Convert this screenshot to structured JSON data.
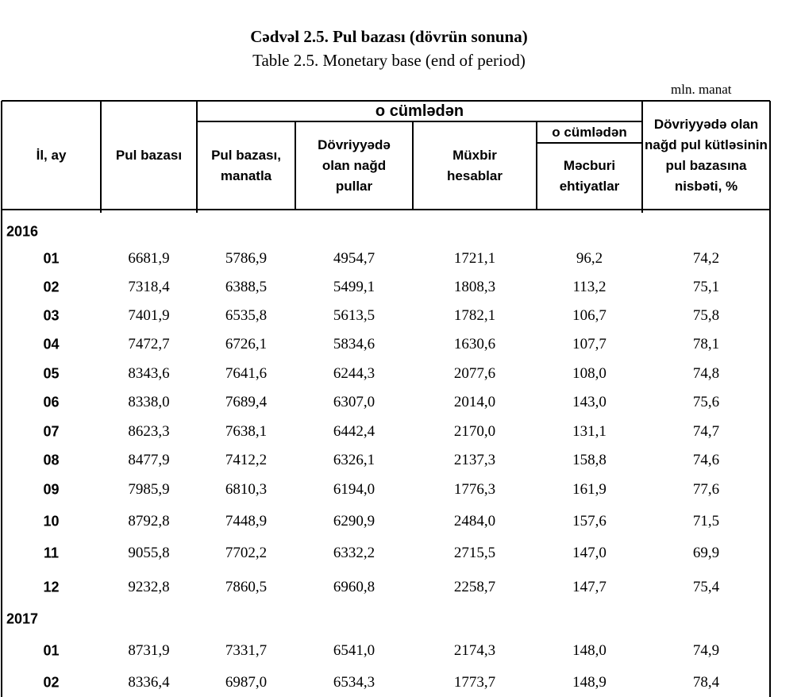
{
  "header": {
    "title": "Cədvəl 2.5.  Pul  bazası (dövrün sonuna)",
    "subtitle": "Table  2.5.  Monetary base (end of period)",
    "unit": "mln. manat"
  },
  "table": {
    "columns": [
      "İl, ay",
      "Pul bazası",
      "o cümlədən",
      "Pul  bazası, manatla",
      "Dövriyyədə olan nağd pullar",
      "Müxbir hesablar",
      "o cümlədən",
      "Məcburi ehtiyatlar",
      "Dövriyyədə olan nağd pul kütləsinin pul bazasına nisbəti, %"
    ],
    "rows": [
      [
        "2016"
      ],
      [
        "01",
        "6681,9",
        "5786,9",
        "4954,7",
        "1721,1",
        "96,2",
        "74,2"
      ],
      [
        "02",
        "7318,4",
        "6388,5",
        "5499,1",
        "1808,3",
        "113,2",
        "75,1"
      ],
      [
        "03",
        "7401,9",
        "6535,8",
        "5613,5",
        "1782,1",
        "106,7",
        "75,8"
      ],
      [
        "04",
        "7472,7",
        "6726,1",
        "5834,6",
        "1630,6",
        "107,7",
        "78,1"
      ],
      [
        "05",
        "8343,6",
        "7641,6",
        "6244,3",
        "2077,6",
        "108,0",
        "74,8"
      ],
      [
        "06",
        "8338,0",
        "7689,4",
        "6307,0",
        "2014,0",
        "143,0",
        "75,6"
      ],
      [
        "07",
        "8623,3",
        "7638,1",
        "6442,4",
        "2170,0",
        "131,1",
        "74,7"
      ],
      [
        "08",
        "8477,9",
        "7412,2",
        "6326,1",
        "2137,3",
        "158,8",
        "74,6"
      ],
      [
        "09",
        "7985,9",
        "6810,3",
        "6194,0",
        "1776,3",
        "161,9",
        "77,6"
      ],
      [
        "10",
        "8792,8",
        "7448,9",
        "6290,9",
        "2484,0",
        "157,6",
        "71,5"
      ],
      [
        "11",
        "9055,8",
        "7702,2",
        "6332,2",
        "2715,5",
        "147,0",
        "69,9"
      ],
      [
        "12",
        "9232,8",
        "7860,5",
        "6960,8",
        "2258,7",
        "147,7",
        "75,4"
      ],
      [
        "2017"
      ],
      [
        "01",
        "8731,9",
        "7331,7",
        "6541,0",
        "2174,3",
        "148,0",
        "74,9"
      ],
      [
        "02",
        "8336,4",
        "6987,0",
        "6534,3",
        "1773,7",
        "148,9",
        "78,4"
      ]
    ]
  }
}
